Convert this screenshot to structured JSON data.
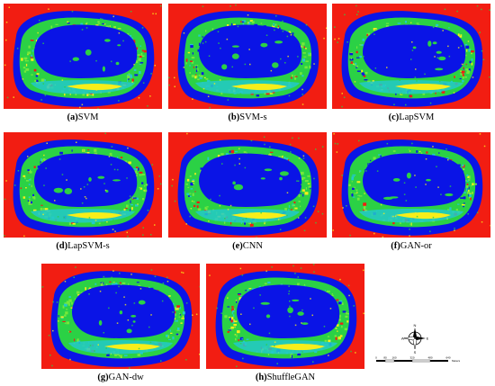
{
  "colors": {
    "red": "#f21d12",
    "blue": "#0a14e6",
    "green": "#2bd145",
    "lime": "#74e83a",
    "cyan": "#23c9c9",
    "yellow": "#f7ee1a",
    "white": "#ffffff"
  },
  "panels": [
    {
      "letter": "(a)",
      "method": "SVM"
    },
    {
      "letter": "(b)",
      "method": "SVM-s"
    },
    {
      "letter": "(c)",
      "method": "LapSVM"
    },
    {
      "letter": "(d)",
      "method": "LapSVM-s"
    },
    {
      "letter": "(e)",
      "method": "CNN"
    },
    {
      "letter": "(f)",
      "method": "GAN-or"
    },
    {
      "letter": "(g)",
      "method": "GAN-dw"
    },
    {
      "letter": "(h)",
      "method": "ShuffleGAN"
    }
  ],
  "compass": {
    "n": "N",
    "s": "S",
    "e": "E",
    "w": "W"
  },
  "scale": {
    "ticks": [
      "0",
      "80",
      "160",
      "320",
      "480",
      "640"
    ],
    "unit": "Meters"
  }
}
